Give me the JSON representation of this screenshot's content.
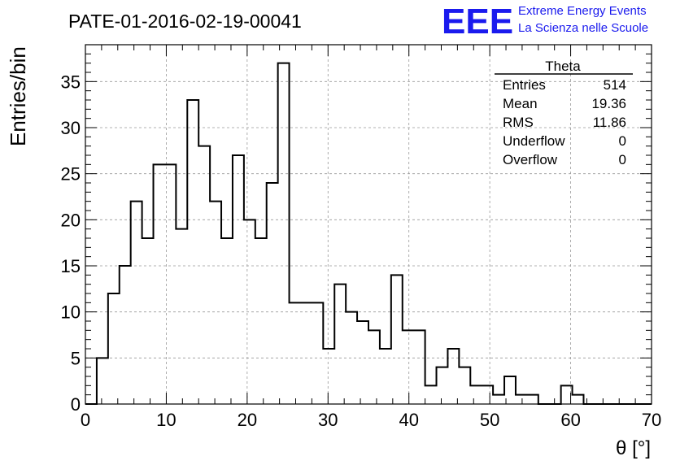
{
  "title": "PATE-01-2016-02-19-00041",
  "logo": {
    "mark": "EEE",
    "line1": "Extreme Energy Events",
    "line2": "La Scienza nelle Scuole",
    "color": "#1a1aee"
  },
  "stats": {
    "name": "Theta",
    "rows": [
      {
        "label": "Entries",
        "value": "514"
      },
      {
        "label": "Mean",
        "value": "19.36"
      },
      {
        "label": "RMS",
        "value": "11.86"
      },
      {
        "label": "Underflow",
        "value": "0"
      },
      {
        "label": "Overflow",
        "value": "0"
      }
    ]
  },
  "chart_data": {
    "type": "bar",
    "histogram": true,
    "bin_width": 1.4,
    "bin_edges_start": 0,
    "title": "PATE-01-2016-02-19-00041",
    "xlabel": "θ [°]",
    "ylabel": "Entries/bin",
    "xlim": [
      0,
      70
    ],
    "ylim": [
      0,
      39
    ],
    "xticks": [
      0,
      10,
      20,
      30,
      40,
      50,
      60,
      70
    ],
    "yticks": [
      0,
      5,
      10,
      15,
      20,
      25,
      30,
      35
    ],
    "grid": true,
    "legend": "stats box top-right",
    "values": [
      0,
      5,
      12,
      15,
      22,
      18,
      26,
      26,
      19,
      33,
      28,
      22,
      18,
      27,
      20,
      18,
      24,
      37,
      11,
      11,
      11,
      6,
      13,
      10,
      9,
      8,
      6,
      14,
      8,
      8,
      2,
      4,
      6,
      4,
      2,
      2,
      1,
      3,
      1,
      1,
      0,
      0,
      2,
      1,
      0,
      0,
      0,
      0,
      0,
      0
    ]
  }
}
